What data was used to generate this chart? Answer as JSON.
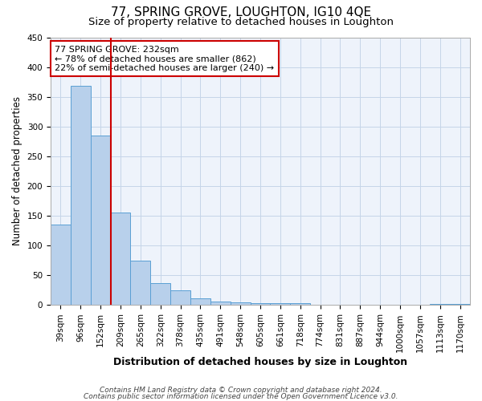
{
  "title": "77, SPRING GROVE, LOUGHTON, IG10 4QE",
  "subtitle": "Size of property relative to detached houses in Loughton",
  "xlabel": "Distribution of detached houses by size in Loughton",
  "ylabel": "Number of detached properties",
  "footnote1": "Contains HM Land Registry data © Crown copyright and database right 2024.",
  "footnote2": "Contains public sector information licensed under the Open Government Licence v3.0.",
  "categories": [
    "39sqm",
    "96sqm",
    "152sqm",
    "209sqm",
    "265sqm",
    "322sqm",
    "378sqm",
    "435sqm",
    "491sqm",
    "548sqm",
    "605sqm",
    "661sqm",
    "718sqm",
    "774sqm",
    "831sqm",
    "887sqm",
    "944sqm",
    "1000sqm",
    "1057sqm",
    "1113sqm",
    "1170sqm"
  ],
  "values": [
    135,
    368,
    285,
    155,
    75,
    37,
    25,
    11,
    6,
    5,
    4,
    4,
    3,
    0,
    0,
    0,
    0,
    0,
    0,
    2,
    2
  ],
  "bar_color": "#b8d0eb",
  "bar_edge_color": "#5a9fd4",
  "vline_x_index": 2.5,
  "vline_color": "#cc0000",
  "annotation_text": "77 SPRING GROVE: 232sqm\n← 78% of detached houses are smaller (862)\n22% of semi-detached houses are larger (240) →",
  "annotation_box_color": "#ffffff",
  "annotation_box_edge": "#cc0000",
  "ylim": [
    0,
    450
  ],
  "yticks": [
    0,
    50,
    100,
    150,
    200,
    250,
    300,
    350,
    400,
    450
  ],
  "bg_color": "#eef3fb",
  "grid_color": "#c5d5e8",
  "title_fontsize": 11,
  "subtitle_fontsize": 9.5,
  "xlabel_fontsize": 9,
  "ylabel_fontsize": 8.5,
  "tick_fontsize": 7.5,
  "footnote_fontsize": 6.5
}
